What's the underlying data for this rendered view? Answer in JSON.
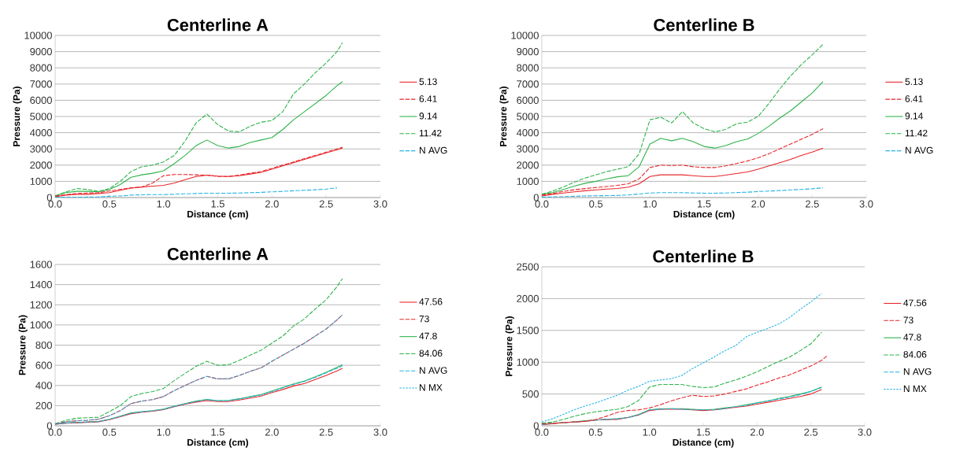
{
  "chart_data": [
    {
      "type": "line",
      "title": "Centerline A",
      "xlabel": "Distance (cm)",
      "ylabel": "Pressure (Pa)",
      "grid": "y",
      "legend": "right",
      "xlim": [
        0,
        3
      ],
      "ylim": [
        0,
        10000
      ],
      "xticks": [
        {
          "value": 0,
          "label": "0.0"
        },
        0.5,
        {
          "value": 1,
          "label": "1.0"
        },
        1.5,
        {
          "value": 2,
          "label": "2.0"
        },
        2.5,
        {
          "value": 3,
          "label": "3.0"
        }
      ],
      "yticks": [
        0,
        1000,
        2000,
        3000,
        4000,
        5000,
        6000,
        7000,
        8000,
        9000,
        10000
      ],
      "x": [
        0,
        0.1,
        0.2,
        0.3,
        0.4,
        0.5,
        0.6,
        0.7,
        0.8,
        0.9,
        1.0,
        1.1,
        1.2,
        1.3,
        1.4,
        1.5,
        1.6,
        1.7,
        1.8,
        1.9,
        2.0,
        2.1,
        2.2,
        2.3,
        2.4,
        2.5,
        2.6,
        2.65
      ],
      "series": [
        {
          "name": "5.13",
          "color": "#e8262b",
          "line_style": "solid",
          "values": [
            50,
            150,
            200,
            200,
            250,
            300,
            450,
            580,
            650,
            700,
            750,
            900,
            1100,
            1300,
            1380,
            1320,
            1300,
            1350,
            1450,
            1550,
            1750,
            1950,
            2150,
            2350,
            2550,
            2750,
            2950,
            3050
          ]
        },
        {
          "name": "6.41",
          "color": "#e8262b",
          "line_style": "dashed",
          "values": [
            80,
            180,
            250,
            280,
            300,
            400,
            500,
            600,
            650,
            900,
            1350,
            1420,
            1420,
            1400,
            1380,
            1300,
            1300,
            1380,
            1500,
            1600,
            1800,
            2000,
            2200,
            2400,
            2600,
            2800,
            3000,
            3100
          ]
        },
        {
          "name": "9.14",
          "color": "#2db34a",
          "line_style": "solid",
          "values": [
            100,
            300,
            380,
            380,
            350,
            500,
            800,
            1250,
            1400,
            1500,
            1650,
            2100,
            2600,
            3200,
            3550,
            3200,
            3050,
            3150,
            3400,
            3550,
            3700,
            4200,
            4800,
            5300,
            5800,
            6300,
            6900,
            7150
          ]
        },
        {
          "name": "11.42",
          "color": "#2db34a",
          "line_style": "dashed",
          "values": [
            100,
            350,
            550,
            500,
            380,
            550,
            1000,
            1600,
            1900,
            2000,
            2200,
            2600,
            3500,
            4600,
            5150,
            4500,
            4100,
            4050,
            4400,
            4650,
            4750,
            5300,
            6400,
            7000,
            7700,
            8300,
            9000,
            9550
          ]
        },
        {
          "name": "N AVG",
          "color": "#27b4e4",
          "line_style": "dashed",
          "values": [
            20,
            20,
            20,
            30,
            40,
            80,
            100,
            150,
            170,
            180,
            180,
            200,
            230,
            250,
            270,
            270,
            270,
            280,
            300,
            320,
            350,
            380,
            420,
            450,
            480,
            520,
            600,
            null
          ]
        }
      ]
    },
    {
      "type": "line",
      "title": "Centerline B",
      "xlabel": "Distance (cm)",
      "ylabel": "Pressure (Pa)",
      "grid": "y",
      "legend": "right",
      "xlim": [
        0,
        3
      ],
      "ylim": [
        0,
        10000
      ],
      "xticks": [
        {
          "value": 0,
          "label": "0.0"
        },
        0.5,
        {
          "value": 1,
          "label": "1.0"
        },
        1.5,
        {
          "value": 2,
          "label": "2.0"
        },
        2.5,
        {
          "value": 3,
          "label": "3.0"
        }
      ],
      "yticks": [
        0,
        1000,
        2000,
        3000,
        4000,
        5000,
        6000,
        7000,
        8000,
        9000,
        10000
      ],
      "x": [
        0,
        0.1,
        0.2,
        0.3,
        0.4,
        0.5,
        0.6,
        0.7,
        0.8,
        0.9,
        1.0,
        1.1,
        1.2,
        1.3,
        1.4,
        1.5,
        1.6,
        1.7,
        1.8,
        1.9,
        2.0,
        2.1,
        2.2,
        2.3,
        2.4,
        2.5,
        2.6
      ],
      "series": [
        {
          "name": "5.13",
          "color": "#e8262b",
          "line_style": "solid",
          "values": [
            100,
            200,
            280,
            350,
            420,
            470,
            520,
            560,
            640,
            850,
            1300,
            1400,
            1400,
            1400,
            1350,
            1300,
            1300,
            1380,
            1480,
            1580,
            1750,
            1950,
            2150,
            2350,
            2600,
            2800,
            3050
          ]
        },
        {
          "name": "6.41",
          "color": "#e8262b",
          "line_style": "dashed",
          "values": [
            150,
            250,
            380,
            480,
            550,
            620,
            680,
            750,
            850,
            1150,
            1850,
            2000,
            1980,
            2000,
            1900,
            1850,
            1850,
            1950,
            2100,
            2250,
            2450,
            2700,
            3000,
            3300,
            3600,
            3900,
            4250
          ]
        },
        {
          "name": "9.14",
          "color": "#2db34a",
          "line_style": "solid",
          "values": [
            200,
            300,
            500,
            700,
            880,
            1000,
            1150,
            1280,
            1350,
            1900,
            3300,
            3650,
            3500,
            3650,
            3450,
            3150,
            3050,
            3200,
            3450,
            3600,
            3950,
            4400,
            4900,
            5350,
            5900,
            6450,
            7150
          ]
        },
        {
          "name": "11.42",
          "color": "#2db34a",
          "line_style": "dashed",
          "values": [
            200,
            400,
            650,
            950,
            1200,
            1400,
            1600,
            1750,
            1900,
            2700,
            4800,
            4950,
            4600,
            5300,
            4600,
            4250,
            4050,
            4200,
            4550,
            4650,
            5000,
            5800,
            6700,
            7500,
            8200,
            8800,
            9450
          ]
        },
        {
          "name": "N AVG",
          "color": "#27b4e4",
          "line_style": "dashed",
          "values": [
            20,
            40,
            60,
            80,
            100,
            110,
            120,
            130,
            160,
            220,
            280,
            300,
            300,
            300,
            280,
            270,
            270,
            280,
            310,
            330,
            370,
            400,
            430,
            470,
            500,
            540,
            600
          ]
        }
      ]
    },
    {
      "type": "line",
      "title": "Centerline A",
      "xlabel": "Distance (cm)",
      "ylabel": "Pressure (Pa)",
      "grid": "y",
      "legend": "right",
      "xlim": [
        0,
        3
      ],
      "ylim": [
        0,
        1600
      ],
      "xticks": [
        {
          "value": 0,
          "label": "0.0"
        },
        0.5,
        {
          "value": 1,
          "label": "1.0"
        },
        1.5,
        {
          "value": 2,
          "label": "2.0"
        },
        2.5,
        {
          "value": 3,
          "label": "3.0"
        }
      ],
      "yticks": [
        0,
        200,
        400,
        600,
        800,
        1000,
        1200,
        1400,
        1600
      ],
      "x": [
        0,
        0.1,
        0.2,
        0.3,
        0.4,
        0.5,
        0.6,
        0.7,
        0.8,
        0.9,
        1.0,
        1.1,
        1.2,
        1.3,
        1.4,
        1.5,
        1.6,
        1.7,
        1.8,
        1.9,
        2.0,
        2.1,
        2.2,
        2.3,
        2.4,
        2.5,
        2.6,
        2.65
      ],
      "series": [
        {
          "name": "47.56",
          "color": "#e8262b",
          "line_style": "solid",
          "values": [
            15,
            25,
            30,
            35,
            40,
            60,
            90,
            120,
            135,
            145,
            160,
            190,
            215,
            235,
            250,
            240,
            240,
            255,
            275,
            295,
            330,
            360,
            395,
            420,
            460,
            500,
            545,
            570
          ]
        },
        {
          "name": "73",
          "color": "#e8262b",
          "line_style": "dashed",
          "values": [
            20,
            40,
            50,
            55,
            65,
            100,
            150,
            220,
            245,
            260,
            290,
            350,
            400,
            450,
            490,
            465,
            465,
            500,
            540,
            575,
            640,
            700,
            760,
            820,
            890,
            960,
            1050,
            1100
          ]
        },
        {
          "name": "47.8",
          "color": "#2db34a",
          "line_style": "solid",
          "values": [
            15,
            28,
            32,
            38,
            42,
            65,
            95,
            128,
            140,
            150,
            165,
            195,
            220,
            245,
            262,
            250,
            252,
            268,
            290,
            310,
            345,
            380,
            415,
            445,
            485,
            530,
            580,
            605
          ]
        },
        {
          "name": "84.06",
          "color": "#2db34a",
          "line_style": "dashed",
          "values": [
            20,
            55,
            75,
            80,
            85,
            140,
            200,
            290,
            320,
            340,
            370,
            450,
            520,
            590,
            640,
            600,
            605,
            650,
            700,
            750,
            820,
            890,
            990,
            1060,
            1160,
            1250,
            1380,
            1460
          ]
        },
        {
          "name": "N AVG",
          "color": "#27b4e4",
          "line_style": "dashed",
          "values": [
            15,
            27,
            31,
            37,
            41,
            63,
            93,
            125,
            138,
            148,
            163,
            192,
            218,
            242,
            260,
            248,
            250,
            265,
            287,
            307,
            340,
            375,
            410,
            440,
            480,
            525,
            570,
            595
          ]
        },
        {
          "name": "N MX",
          "color": "#27b4e4",
          "line_style": "dotted",
          "values": [
            20,
            40,
            50,
            55,
            65,
            100,
            150,
            220,
            245,
            260,
            290,
            350,
            400,
            450,
            490,
            465,
            465,
            500,
            540,
            575,
            640,
            700,
            760,
            820,
            890,
            960,
            1050,
            1100
          ]
        }
      ]
    },
    {
      "type": "line",
      "title": "Centerline B",
      "xlabel": "Distance (cm)",
      "ylabel": "Pressure (Pa)",
      "grid": "y",
      "legend": "right",
      "xlim": [
        0,
        3
      ],
      "ylim": [
        0,
        2500
      ],
      "xticks": [
        {
          "value": 0,
          "label": "0.0"
        },
        0.5,
        {
          "value": 1,
          "label": "1.0"
        },
        1.5,
        {
          "value": 2,
          "label": "2.0"
        },
        2.5,
        {
          "value": 3,
          "label": "3.0"
        }
      ],
      "yticks": [
        0,
        500,
        1000,
        1500,
        2000,
        2500
      ],
      "x": [
        0,
        0.1,
        0.2,
        0.3,
        0.4,
        0.5,
        0.6,
        0.7,
        0.8,
        0.9,
        1.0,
        1.1,
        1.2,
        1.3,
        1.4,
        1.5,
        1.6,
        1.7,
        1.8,
        1.9,
        2.0,
        2.1,
        2.2,
        2.3,
        2.4,
        2.5,
        2.6,
        2.65
      ],
      "series": [
        {
          "name": "47.56",
          "color": "#e8262b",
          "line_style": "solid",
          "values": [
            20,
            30,
            50,
            60,
            70,
            90,
            100,
            100,
            130,
            170,
            240,
            260,
            260,
            260,
            250,
            240,
            250,
            270,
            290,
            310,
            340,
            370,
            400,
            430,
            460,
            500,
            570,
            null
          ]
        },
        {
          "name": "73",
          "color": "#e8262b",
          "line_style": "dashed",
          "values": [
            30,
            40,
            50,
            60,
            70,
            100,
            150,
            210,
            240,
            250,
            280,
            330,
            390,
            440,
            480,
            460,
            470,
            500,
            540,
            580,
            640,
            690,
            750,
            800,
            870,
            940,
            1030,
            1100
          ]
        },
        {
          "name": "47.8",
          "color": "#2db34a",
          "line_style": "solid",
          "values": [
            20,
            40,
            50,
            60,
            80,
            90,
            100,
            110,
            130,
            180,
            250,
            270,
            270,
            270,
            260,
            250,
            260,
            280,
            300,
            330,
            360,
            390,
            430,
            460,
            500,
            540,
            610,
            null
          ]
        },
        {
          "name": "84.06",
          "color": "#2db34a",
          "line_style": "dashed",
          "values": [
            40,
            60,
            100,
            150,
            190,
            220,
            240,
            260,
            300,
            400,
            610,
            650,
            650,
            650,
            620,
            600,
            610,
            670,
            720,
            780,
            850,
            930,
            1010,
            1080,
            1180,
            1290,
            1470,
            null
          ]
        },
        {
          "name": "N AVG",
          "color": "#27b4e4",
          "line_style": "dashed",
          "values": [
            20,
            40,
            50,
            60,
            70,
            90,
            100,
            110,
            130,
            170,
            250,
            260,
            270,
            260,
            250,
            250,
            250,
            270,
            300,
            320,
            360,
            390,
            420,
            450,
            490,
            540,
            600,
            null
          ]
        },
        {
          "name": "N MX",
          "color": "#27b4e4",
          "line_style": "dotted",
          "values": [
            60,
            110,
            180,
            250,
            310,
            360,
            420,
            480,
            560,
            620,
            700,
            720,
            740,
            790,
            900,
            990,
            1080,
            1180,
            1260,
            1400,
            1470,
            1530,
            1600,
            1700,
            1830,
            1950,
            2080,
            null
          ]
        }
      ]
    }
  ]
}
